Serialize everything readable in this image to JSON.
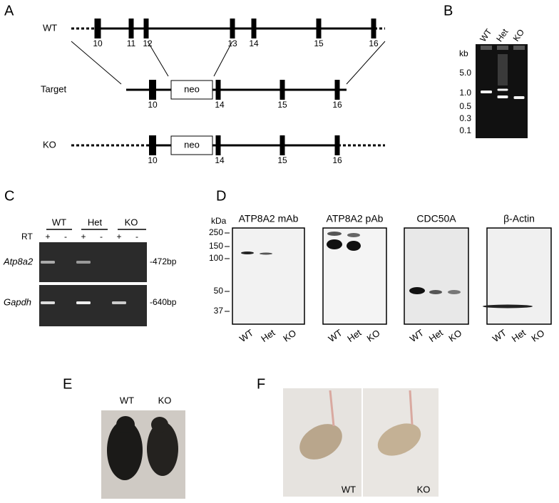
{
  "panel_a": {
    "label": "A",
    "rows": [
      {
        "name": "WT",
        "exons": [
          "10",
          "11",
          "12",
          "13",
          "14",
          "15",
          "16"
        ]
      },
      {
        "name": "Target",
        "exons": [
          "10",
          "14",
          "15",
          "16"
        ],
        "cassette": "neo"
      },
      {
        "name": "KO",
        "exons": [
          "10",
          "14",
          "15",
          "16"
        ],
        "cassette": "neo"
      }
    ]
  },
  "panel_b": {
    "label": "B",
    "lanes": [
      "WT",
      "Het",
      "KO"
    ],
    "unit": "kb",
    "ladder": [
      "5.0",
      "1.0",
      "0.5",
      "0.3",
      "0.1"
    ]
  },
  "panel_c": {
    "label": "C",
    "groups": [
      "WT",
      "Het",
      "KO"
    ],
    "rt_label": "RT",
    "rt_signs": [
      "+",
      "-",
      "+",
      "-",
      "+",
      "-"
    ],
    "genes": [
      "Atp8a2",
      "Gapdh"
    ],
    "sizes": [
      "-472bp",
      "-640bp"
    ]
  },
  "panel_d": {
    "label": "D",
    "unit": "kDa",
    "markers": [
      "250",
      "150",
      "100",
      "50",
      "37"
    ],
    "blots": [
      {
        "title": "ATP8A2 mAb",
        "lanes": [
          "WT",
          "Het",
          "KO"
        ]
      },
      {
        "title": "ATP8A2 pAb",
        "lanes": [
          "WT",
          "Het",
          "KO"
        ]
      },
      {
        "title": "CDC50A",
        "lanes": [
          "WT",
          "Het",
          "KO"
        ]
      },
      {
        "title": "β-Actin",
        "lanes": [
          "WT",
          "Het",
          "KO"
        ]
      }
    ]
  },
  "panel_e": {
    "label": "E",
    "lanes": [
      "WT",
      "KO"
    ]
  },
  "panel_f": {
    "label": "F",
    "captions": [
      "WT",
      "KO"
    ]
  }
}
